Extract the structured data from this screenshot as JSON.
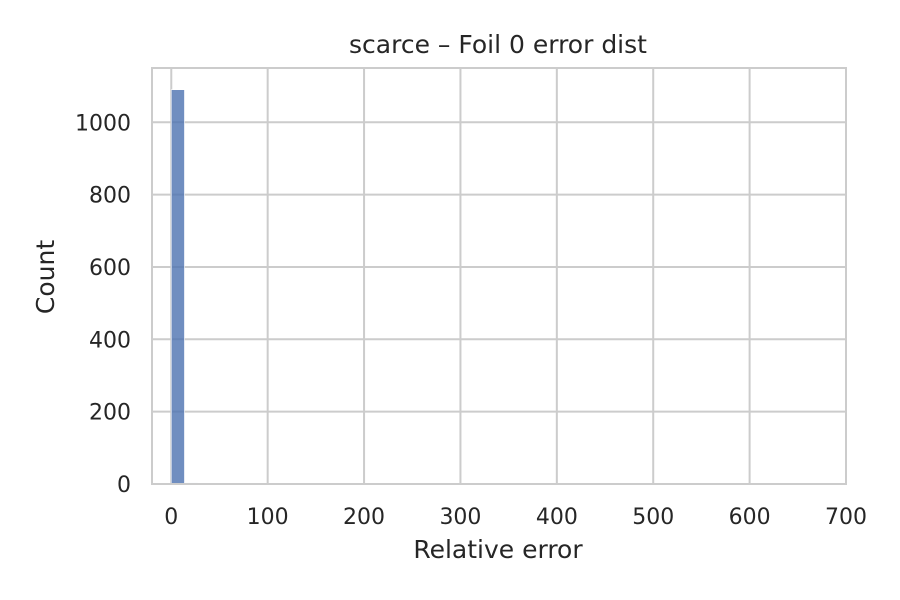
{
  "chart_data": {
    "type": "bar",
    "title": "scarce – Foil 0 error dist",
    "xlabel": "Relative error",
    "ylabel": "Count",
    "xlim": [
      -20,
      700
    ],
    "ylim": [
      0,
      1150
    ],
    "xticks": [
      0,
      100,
      200,
      300,
      400,
      500,
      600,
      700
    ],
    "yticks": [
      0,
      200,
      400,
      600,
      800,
      1000
    ],
    "bin_width": 13.7,
    "bins": [
      {
        "x0": 0,
        "x1": 13.7,
        "count": 1090
      },
      {
        "x0": 13.7,
        "x1": 27.4,
        "count": 3
      },
      {
        "x0": 27.4,
        "x1": 41.1,
        "count": 1
      },
      {
        "x0": 685,
        "x1": 698.7,
        "count": 1
      }
    ],
    "grid": true,
    "legend": "none",
    "colors": {
      "bar_fill": "#4c72b0",
      "grid": "#cccccc",
      "frame": "#cccccc",
      "text": "#262626"
    }
  }
}
